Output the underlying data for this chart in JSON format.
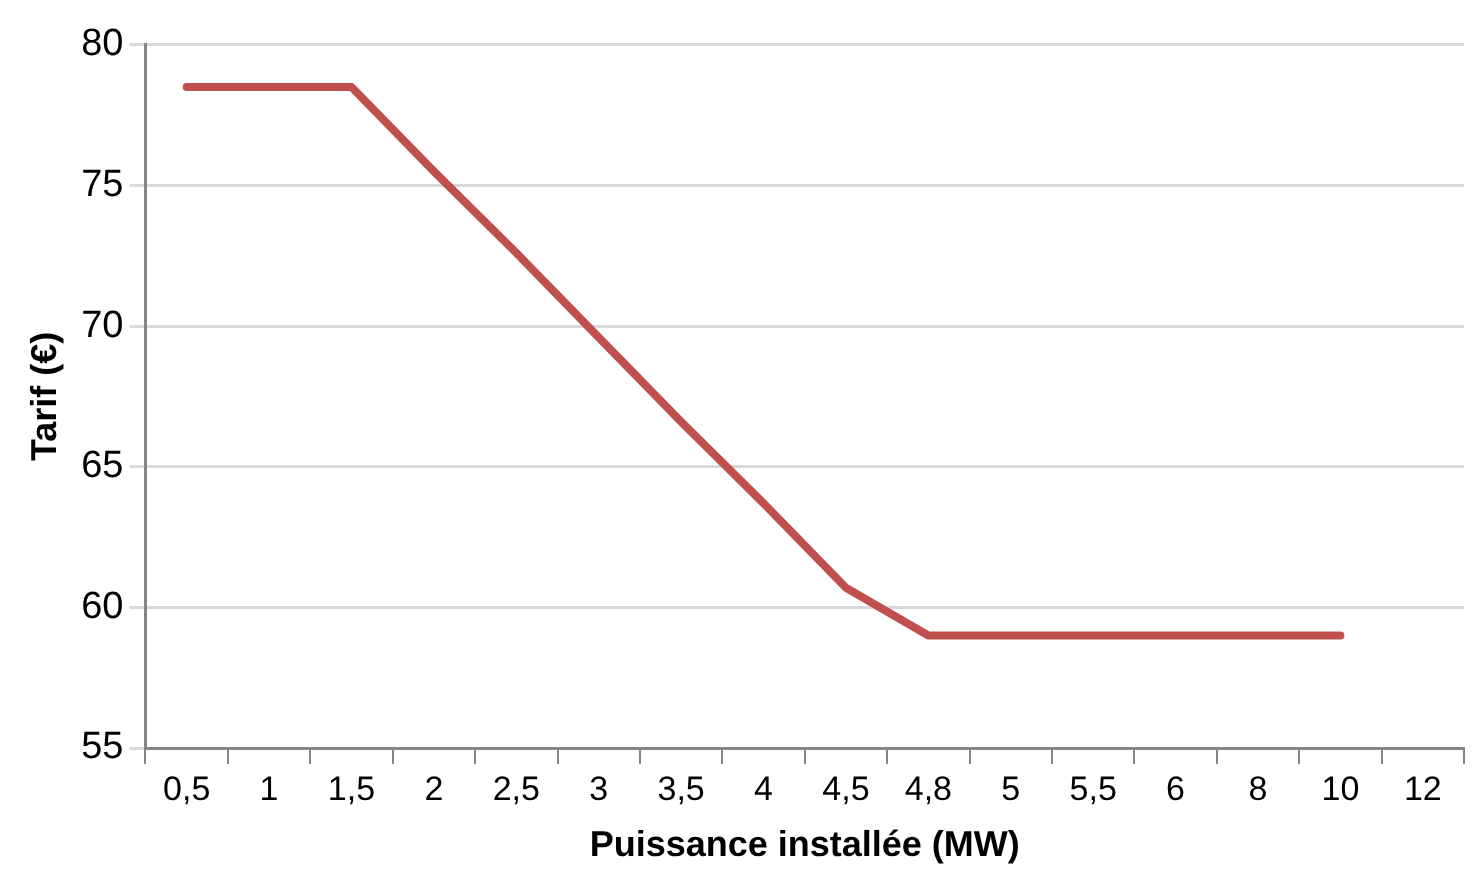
{
  "chart_data": {
    "type": "line",
    "xlabel": "Puissance installée (MW)",
    "ylabel": "Tarif (€)",
    "categories": [
      "0,5",
      "1",
      "1,5",
      "2",
      "2,5",
      "3",
      "3,5",
      "4",
      "4,5",
      "4,8",
      "5",
      "5,5",
      "6",
      "8",
      "10",
      "12"
    ],
    "series": [
      {
        "color": "#c0504d",
        "values": [
          78.5,
          78.5,
          78.5,
          75.5,
          72.6,
          69.6,
          66.6,
          63.7,
          60.7,
          59,
          59,
          59,
          59,
          59,
          59,
          null
        ]
      }
    ],
    "ylim": [
      55,
      80
    ],
    "yticks": [
      55,
      60,
      65,
      70,
      75,
      80
    ],
    "grid": "y",
    "legend": false,
    "marker": "none",
    "line_style": "solid"
  }
}
